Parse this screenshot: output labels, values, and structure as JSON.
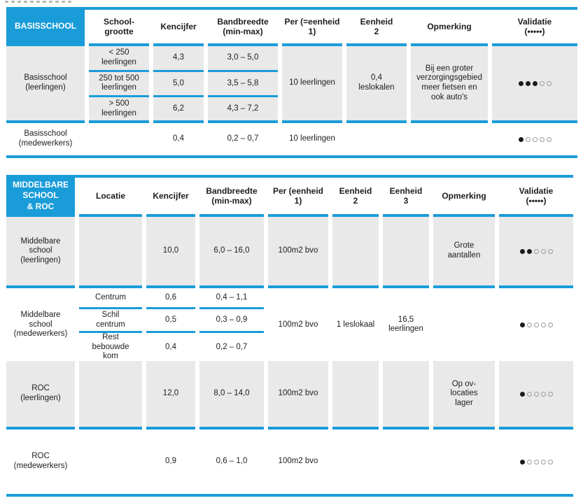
{
  "colors": {
    "accent_blue": "#1a9cd9",
    "row_grey": "#e9e9e9",
    "text_ink": "#1d1d1b"
  },
  "basisschool": {
    "title": "BASISSCHOOL",
    "columns": [
      "School-grootte",
      "Kencijfer",
      "Bandbreedte (min-max)",
      "Per (=eenheid 1)",
      "Eenheid 2",
      "Opmerking",
      "Validatie (•••••)"
    ],
    "leerlingen": {
      "label": "Basisschool (leerlingen)",
      "sub_rows": [
        {
          "schoolgrootte": "< 250 leerlingen",
          "kencijfer": "4,3",
          "bandbreedte": "3,0 – 5,0"
        },
        {
          "schoolgrootte": "250 tot 500 leerlingen",
          "kencijfer": "5,0",
          "bandbreedte": "3,5 – 5,8"
        },
        {
          "schoolgrootte": "> 500 leerlingen",
          "kencijfer": "6,2",
          "bandbreedte": "4,3 – 7,2"
        }
      ],
      "per": "10 leerlingen",
      "eenheid2": "0,4 leslokalen",
      "opmerking": "Bij een groter verzorgingsgebied meer fietsen en ook auto's",
      "validatie": {
        "filled": 3,
        "total": 5
      }
    },
    "medewerkers": {
      "label": "Basisschool (medewerkers)",
      "kencijfer": "0,4",
      "bandbreedte": "0,2 – 0,7",
      "per": "10 leerlingen",
      "validatie": {
        "filled": 1,
        "total": 5
      }
    }
  },
  "middelbare": {
    "title": "MIDDELBARE\nSCHOOL\n& ROC",
    "columns": [
      "Locatie",
      "Kencijfer",
      "Bandbreedte (min-max)",
      "Per (eenheid 1)",
      "Eenheid 2",
      "Eenheid 3",
      "Opmerking",
      "Validatie (•••••)"
    ],
    "ms_leerlingen": {
      "label": "Middelbare school (leerlingen)",
      "kencijfer": "10,0",
      "bandbreedte": "6,0 – 16,0",
      "per": "100m2 bvo",
      "opmerking": "Grote aantallen",
      "validatie": {
        "filled": 2,
        "total": 5
      }
    },
    "ms_medewerkers": {
      "label": "Middelbare school (medewerkers)",
      "sub_rows": [
        {
          "locatie": "Centrum",
          "kencijfer": "0,6",
          "bandbreedte": "0,4 – 1,1"
        },
        {
          "locatie": "Schil centrum",
          "kencijfer": "0,5",
          "bandbreedte": "0,3 – 0,9"
        },
        {
          "locatie": "Rest bebouwde kom",
          "kencijfer": "0,4",
          "bandbreedte": "0,2 – 0,7"
        }
      ],
      "per": "100m2 bvo",
      "eenheid2": "1 leslokaal",
      "eenheid3": "16,5 leerlingen",
      "validatie": {
        "filled": 1,
        "total": 5
      }
    },
    "roc_leerlingen": {
      "label": "ROC (leerlingen)",
      "kencijfer": "12,0",
      "bandbreedte": "8,0 – 14,0",
      "per": "100m2 bvo",
      "opmerking": "Op ov-locaties lager",
      "validatie": {
        "filled": 1,
        "total": 5
      }
    },
    "roc_medewerkers": {
      "label": "ROC (medewerkers)",
      "kencijfer": "0,9",
      "bandbreedte": "0,6 – 1,0",
      "per": "100m2 bvo",
      "validatie": {
        "filled": 1,
        "total": 5
      }
    }
  }
}
